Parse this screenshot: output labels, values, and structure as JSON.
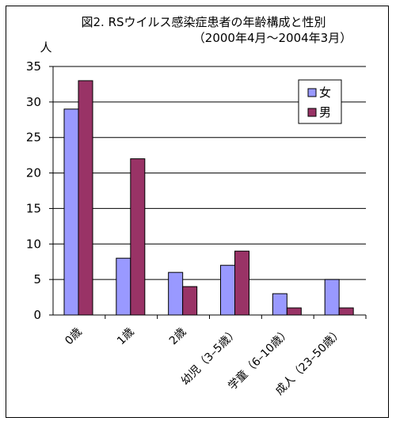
{
  "chart_data": {
    "type": "bar",
    "title": "図2. RSウイルス感染症患者の年齢構成と性別",
    "subtitle": "（2000年4月～2004年3月）",
    "ylabel": "人",
    "xlabel": "",
    "ylim": [
      0,
      35
    ],
    "yticks": [
      0,
      5,
      10,
      15,
      20,
      25,
      30,
      35
    ],
    "grid": true,
    "legend_position": "top-right",
    "categories": [
      "0歳",
      "1歳",
      "2歳",
      "幼児（3–5歳）",
      "学童（6–10歳）",
      "成人（23–50歳）"
    ],
    "series": [
      {
        "name": "女",
        "color": "#9999ff",
        "values": [
          29,
          8,
          6,
          7,
          3,
          5
        ]
      },
      {
        "name": "男",
        "color": "#993366",
        "values": [
          33,
          22,
          4,
          9,
          1,
          1
        ]
      }
    ]
  }
}
